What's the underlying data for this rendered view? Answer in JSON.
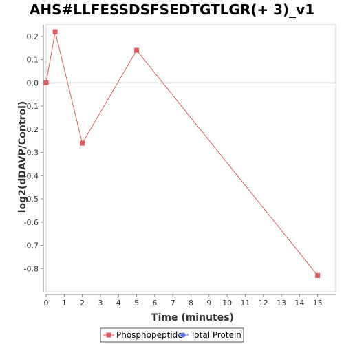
{
  "chart_data": {
    "type": "line",
    "title": "AHS#LLFESSDSFSEDTGTLGR(+ 3)_v1",
    "xlabel": "Time (minutes)",
    "ylabel": "log2(dDAVP/Control)",
    "xlim": [
      0,
      16
    ],
    "ylim": [
      -0.9,
      0.25
    ],
    "x_ticks": [
      0,
      1,
      2,
      3,
      4,
      5,
      6,
      7,
      8,
      9,
      10,
      11,
      12,
      13,
      14,
      15
    ],
    "y_ticks": [
      0.2,
      0.1,
      0.0,
      -0.1,
      -0.2,
      -0.3,
      -0.4,
      -0.5,
      -0.6,
      -0.7,
      -0.8
    ],
    "zero_line": true,
    "grid": false,
    "legend_position": "bottom",
    "series": [
      {
        "name": "Phosphopeptide",
        "color": "#e05a5a",
        "marker": "square",
        "x": [
          0,
          0.5,
          2,
          5,
          15
        ],
        "y": [
          0.0,
          0.22,
          -0.26,
          0.14,
          -0.83
        ]
      },
      {
        "name": "Total Protein",
        "color": "#5a6ee0",
        "marker": "circle",
        "x": [],
        "y": []
      }
    ]
  }
}
